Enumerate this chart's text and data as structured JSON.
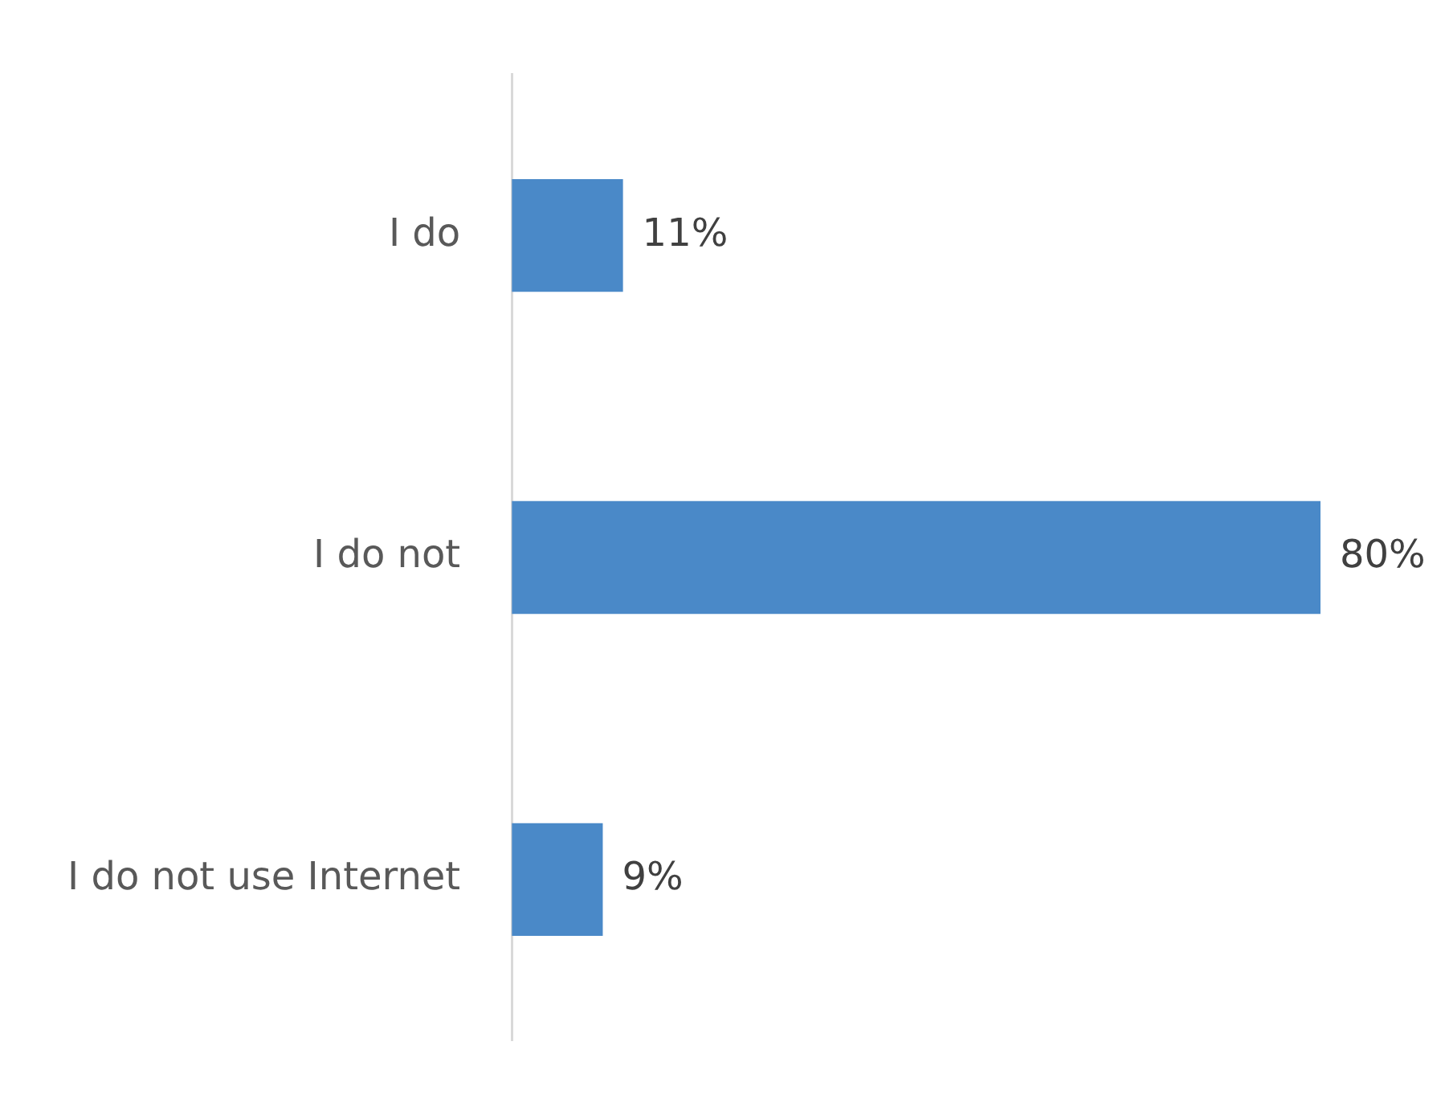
{
  "chart_data": {
    "type": "bar",
    "orientation": "horizontal",
    "categories": [
      "I do",
      "I do not",
      "I do not use Internet"
    ],
    "values": [
      11,
      80,
      9
    ],
    "value_labels": [
      "11%",
      "80%",
      "9%"
    ],
    "color": "#4a89c8",
    "grid": false,
    "legend": false,
    "tick_labels": "y"
  }
}
